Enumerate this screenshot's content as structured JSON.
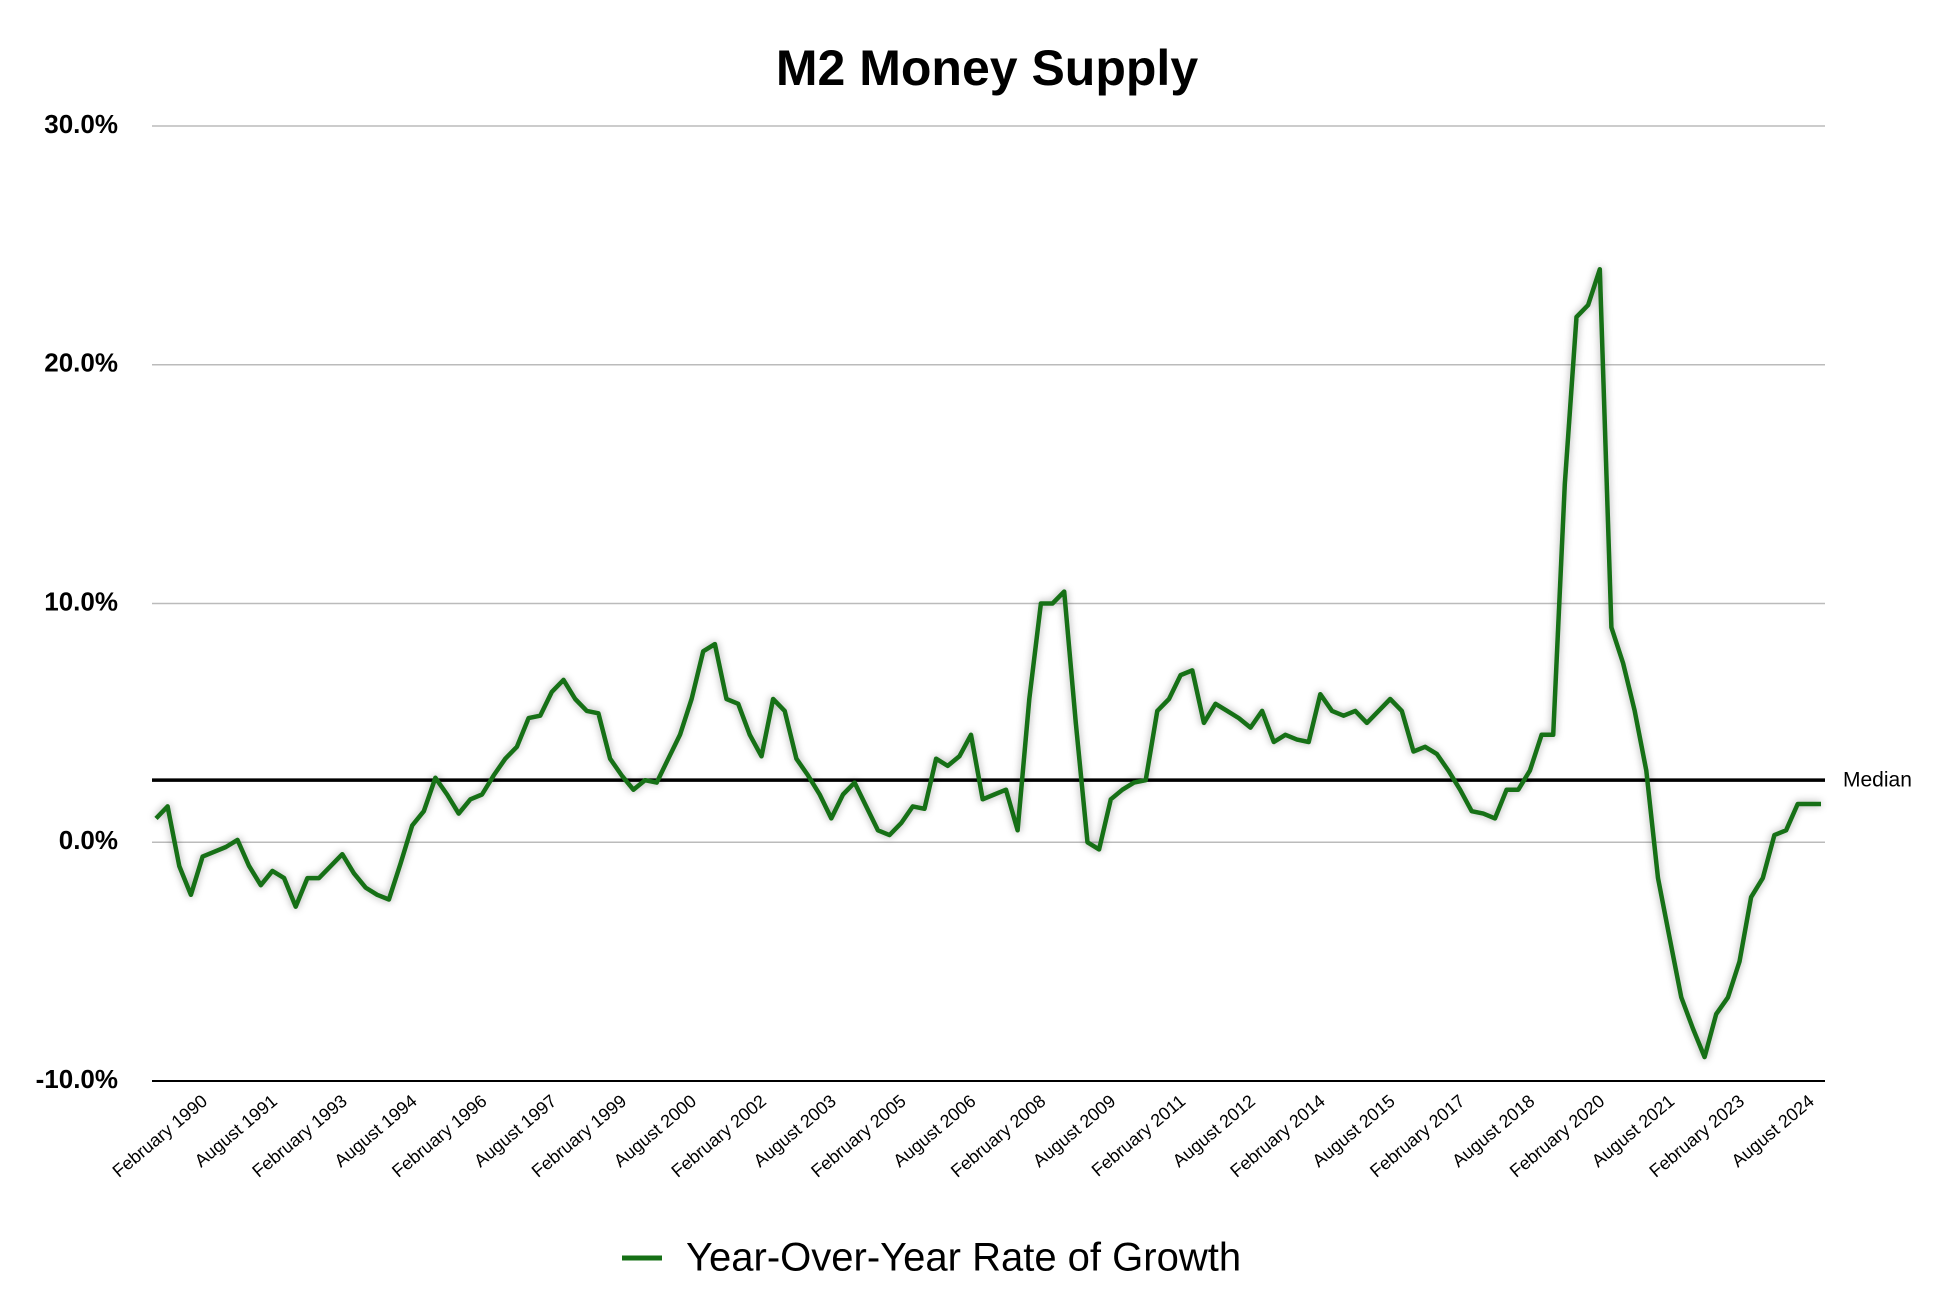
{
  "chart_data": {
    "type": "line",
    "title": "M2 Money Supply",
    "categories": [
      null,
      null,
      null,
      null,
      "February 1990",
      null,
      null,
      null,
      null,
      null,
      "August 1991",
      null,
      null,
      null,
      null,
      null,
      "February 1993",
      null,
      null,
      null,
      null,
      null,
      "August 1994",
      null,
      null,
      null,
      null,
      null,
      "February 1996",
      null,
      null,
      null,
      null,
      null,
      "August 1997",
      null,
      null,
      null,
      null,
      null,
      "February 1999",
      null,
      null,
      null,
      null,
      null,
      "August 2000",
      null,
      null,
      null,
      null,
      null,
      "February 2002",
      null,
      null,
      null,
      null,
      null,
      "August 2003",
      null,
      null,
      null,
      null,
      null,
      "February 2005",
      null,
      null,
      null,
      null,
      null,
      "August 2006",
      null,
      null,
      null,
      null,
      null,
      "February 2008",
      null,
      null,
      null,
      null,
      null,
      "August 2009",
      null,
      null,
      null,
      null,
      null,
      "February 2011",
      null,
      null,
      null,
      null,
      null,
      "August 2012",
      null,
      null,
      null,
      null,
      null,
      "February 2014",
      null,
      null,
      null,
      null,
      null,
      "August 2015",
      null,
      null,
      null,
      null,
      null,
      "February 2017",
      null,
      null,
      null,
      null,
      null,
      "August 2018",
      null,
      null,
      null,
      null,
      null,
      "February 2020",
      null,
      null,
      null,
      null,
      null,
      "August 2021",
      null,
      null,
      null,
      null,
      null,
      "February 2023",
      null,
      null,
      null,
      null,
      null,
      "August 2024",
      null
    ],
    "series": [
      {
        "name": "Year-Over-Year Rate of Growth",
        "color": "#167016",
        "values": [
          1.0,
          1.5,
          -1.0,
          -2.2,
          -0.6,
          -0.4,
          -0.2,
          0.1,
          -1.0,
          -1.8,
          -1.2,
          -1.5,
          -2.7,
          -1.5,
          -1.5,
          -1.0,
          -0.5,
          -1.3,
          -1.9,
          -2.2,
          -2.4,
          -0.9,
          0.7,
          1.3,
          2.7,
          2.0,
          1.2,
          1.8,
          2.0,
          2.8,
          3.5,
          4.0,
          5.2,
          5.3,
          6.3,
          6.8,
          6.0,
          5.5,
          5.4,
          3.5,
          2.8,
          2.2,
          2.6,
          2.5,
          3.5,
          4.5,
          6.0,
          8.0,
          8.3,
          6.0,
          5.8,
          4.5,
          3.6,
          6.0,
          5.5,
          3.5,
          2.8,
          2.0,
          1.0,
          2.0,
          2.5,
          1.5,
          0.5,
          0.3,
          0.8,
          1.5,
          1.4,
          3.5,
          3.2,
          3.6,
          4.5,
          1.8,
          2.0,
          2.2,
          0.5,
          6.0,
          10.0,
          10.0,
          10.5,
          5.0,
          0.0,
          -0.3,
          1.8,
          2.2,
          2.5,
          2.6,
          5.5,
          6.0,
          7.0,
          7.2,
          5.0,
          5.8,
          5.5,
          5.2,
          4.8,
          5.5,
          4.2,
          4.5,
          4.3,
          4.2,
          6.2,
          5.5,
          5.3,
          5.5,
          5.0,
          5.5,
          6.0,
          5.5,
          3.8,
          4.0,
          3.7,
          3.0,
          2.2,
          1.3,
          1.2,
          1.0,
          2.2,
          2.2,
          3.0,
          4.5,
          4.5,
          15.0,
          22.0,
          22.5,
          24.0,
          9.0,
          7.5,
          5.5,
          3.0,
          -1.5,
          -4.0,
          -6.5,
          -7.8,
          -9.0,
          -7.2,
          -6.5,
          -5.0,
          -2.3,
          -1.5,
          0.3,
          0.5,
          1.6,
          1.6,
          1.6
        ]
      }
    ],
    "median": {
      "label": "Median",
      "value": 2.6
    },
    "ylim": [
      -10,
      30
    ],
    "yticks": [
      {
        "value": -10,
        "label": "-10.0%"
      },
      {
        "value": 0,
        "label": "0.0%"
      },
      {
        "value": 10,
        "label": "10.0%"
      },
      {
        "value": 20,
        "label": "20.0%"
      },
      {
        "value": 30,
        "label": "30.0%"
      }
    ],
    "grid": true,
    "legend": "bottom"
  }
}
